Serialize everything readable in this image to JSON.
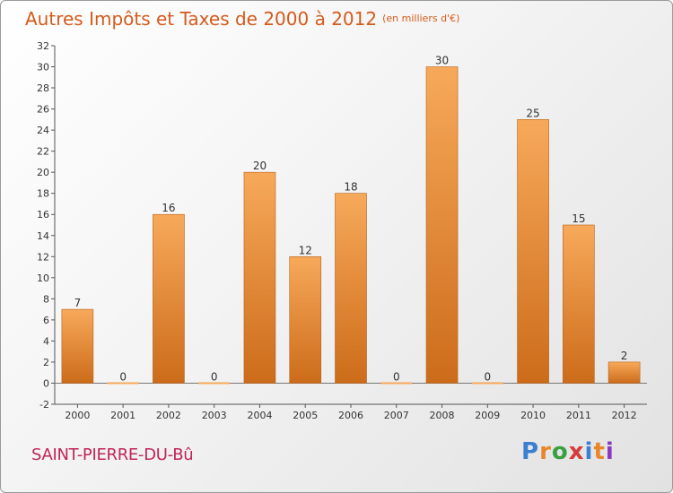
{
  "title": "Autres Impôts et Taxes de 2000 à 2012",
  "subtitle": "(en milliers d'€)",
  "commune": "SAINT-PIERRE-DU-Bû",
  "logo": {
    "letters": [
      "P",
      "r",
      "o",
      "x",
      "i",
      "t",
      "i"
    ],
    "colors": [
      "#3a7fd0",
      "#e8862a",
      "#3aa040",
      "#d63a3a",
      "#3a7fd0",
      "#e8862a",
      "#8a3ac0"
    ]
  },
  "colors": {
    "bar_top": "#f7a95a",
    "bar_bottom": "#cc6c1a",
    "title": "#d45a1c",
    "commune": "#c0245a"
  },
  "chart_data": {
    "type": "bar",
    "categories": [
      "2000",
      "2001",
      "2002",
      "2003",
      "2004",
      "2005",
      "2006",
      "2007",
      "2008",
      "2009",
      "2010",
      "2011",
      "2012"
    ],
    "values": [
      7,
      0,
      16,
      0,
      20,
      12,
      18,
      0,
      30,
      0,
      25,
      15,
      2
    ],
    "data_labels": [
      "7",
      "0",
      "16",
      "0",
      "20",
      "12",
      "18",
      "0",
      "30",
      "0",
      "25",
      "15",
      "2"
    ],
    "ylim": [
      -2,
      32
    ],
    "yticks": [
      -2,
      0,
      2,
      4,
      6,
      8,
      10,
      12,
      14,
      16,
      18,
      20,
      22,
      24,
      26,
      28,
      30,
      32
    ],
    "xlabel": "",
    "ylabel": "",
    "grid": false,
    "legend": "none"
  }
}
